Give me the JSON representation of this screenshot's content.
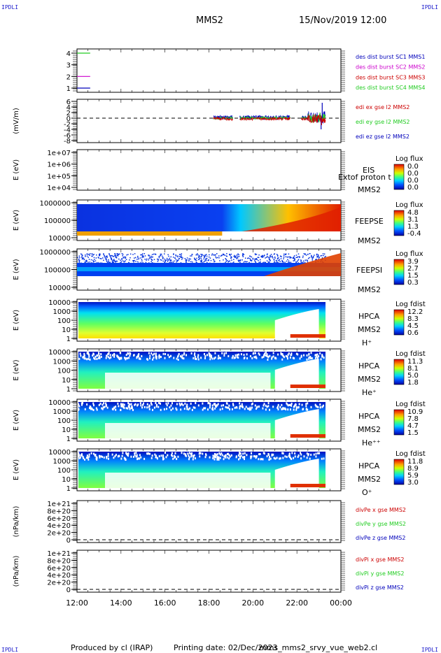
{
  "corner_label": "IPDLI",
  "header": {
    "mission": "MMS2",
    "datetime": "15/Nov/2019 12:00"
  },
  "footer": {
    "produced_by": "Produced by cl (IRAP)",
    "printing_date": "Printing date: 02/Dec/2023",
    "script": "mms_mms2_srvy_vue_web2.cl"
  },
  "x_axis": {
    "ticks": [
      "12:00",
      "14:00",
      "16:00",
      "18:00",
      "20:00",
      "22:00",
      "00:00"
    ]
  },
  "colors": {
    "red": "#cc0000",
    "magenta": "#cc00cc",
    "green": "#22cc22",
    "blue": "#0000bb"
  },
  "chart_data": [
    {
      "id": "dist",
      "type": "line",
      "yticks": [
        "4",
        "3",
        "2",
        "1"
      ],
      "legend": [
        {
          "text": "des dist burst SC1 MMS1",
          "color": "blue"
        },
        {
          "text": "des dist burst SC2 MMS2",
          "color": "magenta"
        },
        {
          "text": "des dist burst SC3 MMS3",
          "color": "red"
        },
        {
          "text": "des dist burst SC4 MMS4",
          "color": "green"
        }
      ],
      "series": [
        {
          "color": "green",
          "y": 4,
          "x": [
            12.0,
            12.6
          ]
        },
        {
          "color": "magenta",
          "y": 2,
          "x": [
            12.0,
            12.6
          ]
        },
        {
          "color": "blue",
          "y": 1,
          "x": [
            12.0,
            12.6
          ]
        }
      ]
    },
    {
      "id": "edi",
      "type": "line",
      "ylabel": "(mV/m)",
      "yticks": [
        "6",
        "4",
        "2",
        "0",
        "-2",
        "-4",
        "-6",
        "-8"
      ],
      "legend": [
        {
          "text": "edi ex gse l2 MMS2",
          "color": "red"
        },
        {
          "text": "edi ey gse l2 MMS2",
          "color": "green"
        },
        {
          "text": "edi ez gse l2 MMS2",
          "color": "blue"
        }
      ]
    },
    {
      "id": "eis",
      "type": "heatmap",
      "ylabel": "E (eV)",
      "yticks": [
        "1e+07",
        "1e+06",
        "1e+05",
        "1e+04"
      ],
      "labels": [
        "EIS",
        "MMS2"
      ],
      "overlay": "Extof proton t",
      "colorbar": {
        "title": "Log flux",
        "ticks": [
          "0.0",
          "0.0",
          "0.0",
          "0.0"
        ]
      }
    },
    {
      "id": "feepse",
      "type": "heatmap",
      "ylabel": "E (eV)",
      "yticks": [
        "1000000",
        "100000",
        "10000"
      ],
      "labels": [
        "FEEPSE",
        "MMS2"
      ],
      "colorbar": {
        "title": "Log flux",
        "ticks": [
          "4.8",
          "3.1",
          "1.3",
          "-0.4"
        ]
      }
    },
    {
      "id": "feepsi",
      "type": "heatmap",
      "ylabel": "E (eV)",
      "yticks": [
        "1000000",
        "100000",
        "10000"
      ],
      "labels": [
        "FEEPSI",
        "MMS2"
      ],
      "colorbar": {
        "title": "Log flux",
        "ticks": [
          "3.9",
          "2.7",
          "1.5",
          "0.3"
        ]
      }
    },
    {
      "id": "hpca_h",
      "type": "heatmap",
      "ylabel": "E (eV)",
      "yticks": [
        "10000",
        "1000",
        "100",
        "10",
        "1"
      ],
      "labels": [
        "HPCA",
        "MMS2",
        "H⁺"
      ],
      "colorbar": {
        "title": "Log fdist",
        "ticks": [
          "12.2",
          "8.3",
          "4.5",
          "0.6"
        ]
      }
    },
    {
      "id": "hpca_he",
      "type": "heatmap",
      "ylabel": "E (eV)",
      "yticks": [
        "10000",
        "1000",
        "100",
        "10",
        "1"
      ],
      "labels": [
        "HPCA",
        "MMS2",
        "He⁺"
      ],
      "colorbar": {
        "title": "Log fdist",
        "ticks": [
          "11.3",
          "8.1",
          "5.0",
          "1.8"
        ]
      }
    },
    {
      "id": "hpca_he2",
      "type": "heatmap",
      "ylabel": "E (eV)",
      "yticks": [
        "10000",
        "1000",
        "100",
        "10",
        "1"
      ],
      "labels": [
        "HPCA",
        "MMS2",
        "He⁺⁺"
      ],
      "colorbar": {
        "title": "Log fdist",
        "ticks": [
          "10.9",
          "7.8",
          "4.7",
          "1.5"
        ]
      }
    },
    {
      "id": "hpca_o",
      "type": "heatmap",
      "ylabel": "E (eV)",
      "yticks": [
        "10000",
        "1000",
        "100",
        "10",
        "1"
      ],
      "labels": [
        "HPCA",
        "MMS2",
        "O⁺"
      ],
      "colorbar": {
        "title": "Log fdist",
        "ticks": [
          "11.8",
          "8.9",
          "5.9",
          "3.0"
        ]
      }
    },
    {
      "id": "divpe",
      "type": "line",
      "ylabel": "(nPa/km)",
      "yticks": [
        "1e+21",
        "8e+20",
        "6e+20",
        "4e+20",
        "2e+20",
        "0"
      ],
      "legend": [
        {
          "text": "divPe x gse MMS2",
          "color": "red"
        },
        {
          "text": "divPe y gse MMS2",
          "color": "green"
        },
        {
          "text": "divPe z gse MMS2",
          "color": "blue"
        }
      ]
    },
    {
      "id": "divpi",
      "type": "line",
      "ylabel": "(nPa/km)",
      "yticks": [
        "1e+21",
        "8e+20",
        "6e+20",
        "4e+20",
        "2e+20",
        "0"
      ],
      "legend": [
        {
          "text": "divPi x gse MMS2",
          "color": "red"
        },
        {
          "text": "divPi y gse MMS2",
          "color": "green"
        },
        {
          "text": "divPi z gse MMS2",
          "color": "blue"
        }
      ]
    }
  ]
}
